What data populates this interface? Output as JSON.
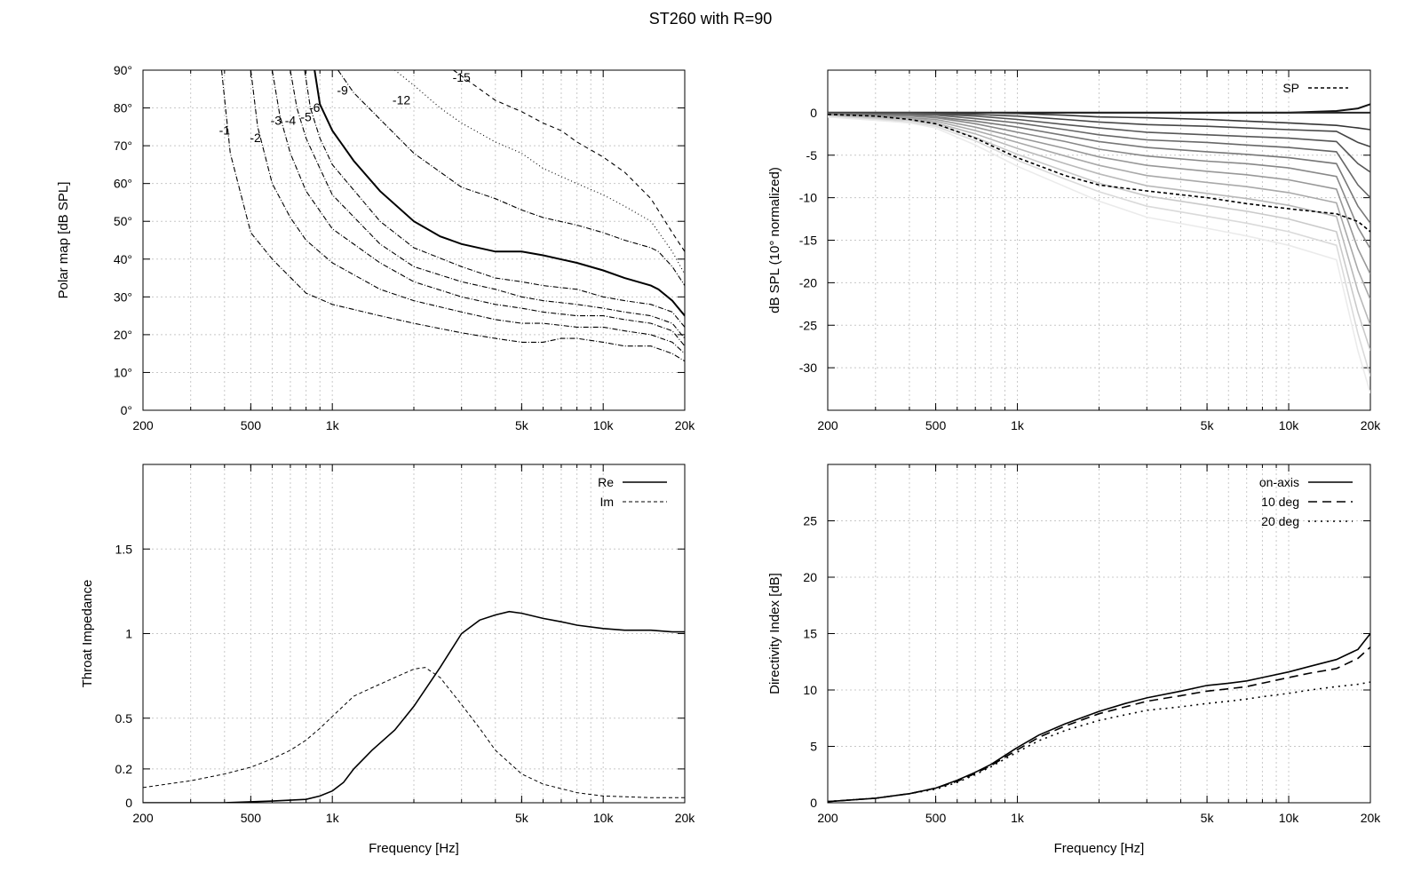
{
  "figure": {
    "title": "ST260 with R=90"
  },
  "chart_data": [
    {
      "id": "polar",
      "type": "contour",
      "ylabel": "Polar map [dB SPL]",
      "xlabel": "",
      "xscale": "log",
      "xlim": [
        200,
        20000
      ],
      "ylim": [
        0,
        90
      ],
      "x_ticks": [
        200,
        500,
        1000,
        5000,
        10000,
        20000
      ],
      "x_tick_labels": [
        "200",
        "500",
        "1k",
        "5k",
        "10k",
        "20k"
      ],
      "y_ticks": [
        0,
        10,
        20,
        30,
        40,
        50,
        60,
        70,
        80,
        90
      ],
      "y_tick_labels": [
        "0°",
        "10°",
        "20°",
        "30°",
        "40°",
        "50°",
        "60°",
        "70°",
        "80°",
        "90°"
      ],
      "grid": true,
      "series": [
        {
          "label": "-1",
          "x": [
            390,
            420,
            500,
            600,
            800,
            1000,
            1500,
            2000,
            3000,
            4000,
            5000,
            6000,
            7000,
            8000,
            10000,
            12000,
            15000,
            18000,
            20000
          ],
          "y": [
            90,
            68,
            47,
            40,
            31,
            28,
            25,
            23,
            20.5,
            19,
            18,
            18,
            19,
            19,
            18,
            17,
            17,
            15,
            13
          ]
        },
        {
          "label": "-2",
          "x": [
            500,
            530,
            600,
            700,
            800,
            1000,
            1500,
            2000,
            3000,
            4000,
            5000,
            6000,
            8000,
            10000,
            12000,
            15000,
            18000,
            20000
          ],
          "y": [
            90,
            75,
            60,
            51,
            45,
            39,
            32,
            29,
            26,
            24,
            23,
            23,
            22,
            22,
            21,
            20,
            18,
            15
          ]
        },
        {
          "label": "-3",
          "x": [
            600,
            640,
            700,
            800,
            1000,
            1500,
            2000,
            3000,
            4000,
            5000,
            6000,
            8000,
            10000,
            12000,
            15000,
            18000,
            20000
          ],
          "y": [
            90,
            78,
            68,
            58,
            48,
            39,
            34,
            30,
            28,
            27,
            26,
            25,
            25,
            24,
            23,
            21,
            17
          ]
        },
        {
          "label": "-4",
          "x": [
            700,
            740,
            800,
            900,
            1000,
            1500,
            2000,
            3000,
            4000,
            5000,
            6000,
            8000,
            10000,
            12000,
            15000,
            18000,
            20000
          ],
          "y": [
            90,
            80,
            72,
            64,
            57,
            44,
            38,
            34,
            32,
            30,
            29,
            28,
            27,
            26,
            25,
            23,
            19
          ]
        },
        {
          "label": "-5",
          "x": [
            790,
            830,
            900,
            1000,
            1500,
            2000,
            3000,
            4000,
            5000,
            6000,
            8000,
            10000,
            12000,
            15000,
            18000,
            20000
          ],
          "y": [
            90,
            80,
            72,
            65,
            50,
            43,
            38,
            35,
            34,
            33,
            32,
            30,
            29,
            28,
            26,
            22
          ]
        },
        {
          "label": "-6",
          "x": [
            860,
            900,
            1000,
            1200,
            1500,
            2000,
            2500,
            3000,
            4000,
            5000,
            6000,
            8000,
            10000,
            12000,
            15000,
            16000,
            18000,
            20000
          ],
          "y": [
            90,
            81,
            74,
            66,
            58,
            50,
            46,
            44,
            42,
            42,
            41,
            39,
            37,
            35,
            33,
            32,
            29,
            25
          ]
        },
        {
          "label": "-9",
          "x": [
            1050,
            1200,
            1500,
            2000,
            3000,
            4000,
            5000,
            6000,
            8000,
            10000,
            12000,
            15000,
            16000,
            18000,
            20000
          ],
          "y": [
            90,
            84,
            77,
            68,
            59,
            56,
            53,
            51,
            49,
            47,
            45,
            43,
            42,
            38,
            33
          ]
        },
        {
          "label": "-12",
          "x": [
            1700,
            2000,
            2500,
            3000,
            4000,
            5000,
            6000,
            8000,
            10000,
            12000,
            15000,
            18000,
            20000
          ],
          "y": [
            90,
            86,
            80,
            76,
            71,
            68,
            64,
            60,
            57,
            54,
            50,
            42,
            36
          ]
        },
        {
          "label": "-15",
          "x": [
            2800,
            3500,
            4000,
            5000,
            6000,
            7000,
            8000,
            10000,
            12000,
            15000,
            18000,
            20000
          ],
          "y": [
            90,
            85,
            82,
            79,
            76,
            74,
            71,
            67,
            63,
            56,
            47,
            42
          ]
        }
      ]
    },
    {
      "id": "spl",
      "type": "line",
      "ylabel": "dB SPL (10° normalized)",
      "xlabel": "",
      "xscale": "log",
      "xlim": [
        200,
        20000
      ],
      "ylim": [
        -35,
        5
      ],
      "x_ticks": [
        200,
        500,
        1000,
        5000,
        10000,
        20000
      ],
      "x_tick_labels": [
        "200",
        "500",
        "1k",
        "5k",
        "10k",
        "20k"
      ],
      "y_ticks": [
        0,
        -5,
        -10,
        -15,
        -20,
        -25,
        -30
      ],
      "y_tick_labels": [
        "0",
        "-5",
        "-10",
        "-15",
        "-20",
        "-25",
        "-30"
      ],
      "grid": true,
      "legend": {
        "position": "top-right"
      },
      "x": [
        200,
        300,
        400,
        500,
        700,
        1000,
        1500,
        2000,
        3000,
        5000,
        7000,
        10000,
        15000,
        18000,
        20000
      ],
      "angle_curves": [
        [
          0,
          0,
          0,
          0,
          0,
          0,
          0,
          0,
          0,
          0,
          0,
          0,
          0.2,
          0.5,
          1.0
        ],
        [
          0,
          0,
          0,
          0,
          0,
          0,
          0,
          0,
          0,
          0,
          0,
          0,
          0,
          0,
          0
        ],
        [
          0,
          0,
          0,
          0,
          0,
          -0.1,
          -0.3,
          -0.5,
          -0.6,
          -0.8,
          -1.0,
          -1.2,
          -1.5,
          -1.8,
          -2.0
        ],
        [
          0,
          0,
          0,
          -0.1,
          -0.2,
          -0.4,
          -0.8,
          -1.1,
          -1.4,
          -1.6,
          -1.8,
          -2.0,
          -2.2,
          -3.5,
          -4.0
        ],
        [
          -0.1,
          -0.1,
          -0.1,
          -0.2,
          -0.4,
          -0.8,
          -1.4,
          -1.8,
          -2.3,
          -2.6,
          -2.8,
          -3.0,
          -3.4,
          -6.0,
          -7.0
        ],
        [
          -0.1,
          -0.2,
          -0.2,
          -0.3,
          -0.7,
          -1.2,
          -2.0,
          -2.6,
          -3.2,
          -3.5,
          -3.8,
          -4.1,
          -4.6,
          -8.5,
          -10.0
        ],
        [
          -0.2,
          -0.3,
          -0.3,
          -0.5,
          -1.0,
          -1.7,
          -2.7,
          -3.4,
          -4.1,
          -4.6,
          -4.9,
          -5.3,
          -6.0,
          -11.0,
          -13.0
        ],
        [
          -0.2,
          -0.3,
          -0.4,
          -0.6,
          -1.3,
          -2.3,
          -3.4,
          -4.3,
          -5.1,
          -5.7,
          -6.0,
          -6.5,
          -7.5,
          -13.5,
          -16.0
        ],
        [
          -0.3,
          -0.4,
          -0.6,
          -0.8,
          -1.7,
          -2.9,
          -4.2,
          -5.2,
          -6.2,
          -6.9,
          -7.3,
          -7.9,
          -9.0,
          -16.0,
          -19.0
        ],
        [
          -0.3,
          -0.5,
          -0.7,
          -1.0,
          -2.1,
          -3.5,
          -5.1,
          -6.2,
          -7.4,
          -8.2,
          -8.7,
          -9.4,
          -10.6,
          -18.5,
          -22.0
        ],
        [
          -0.4,
          -0.6,
          -0.8,
          -1.2,
          -2.5,
          -4.2,
          -6.0,
          -7.2,
          -8.6,
          -9.5,
          -10.1,
          -10.9,
          -12.2,
          -21.0,
          -25.0
        ],
        [
          -0.4,
          -0.7,
          -0.9,
          -1.4,
          -2.9,
          -4.9,
          -6.9,
          -8.3,
          -9.8,
          -10.9,
          -11.6,
          -12.5,
          -14.0,
          -23.5,
          -28.0
        ],
        [
          -0.5,
          -0.8,
          -1.1,
          -1.6,
          -3.3,
          -5.6,
          -7.8,
          -9.3,
          -11.0,
          -12.2,
          -13.0,
          -14.0,
          -15.6,
          -26.0,
          -31.0
        ],
        [
          -0.5,
          -0.9,
          -1.2,
          -1.8,
          -3.8,
          -6.3,
          -8.7,
          -10.4,
          -12.3,
          -13.6,
          -14.5,
          -15.6,
          -17.3,
          -28.0,
          -33.0
        ]
      ],
      "series": [
        {
          "name": "SP",
          "values": [
            -0.2,
            -0.4,
            -0.8,
            -1.3,
            -3.0,
            -5.3,
            -7.4,
            -8.5,
            -9.2,
            -10.0,
            -10.7,
            -11.3,
            -11.9,
            -12.8,
            -14.0
          ]
        }
      ]
    },
    {
      "id": "impedance",
      "type": "line",
      "ylabel": "Throat Impedance",
      "xlabel": "Frequency [Hz]",
      "xscale": "log",
      "xlim": [
        200,
        20000
      ],
      "ylim": [
        0,
        2.0
      ],
      "x_ticks": [
        200,
        500,
        1000,
        5000,
        10000,
        20000
      ],
      "x_tick_labels": [
        "200",
        "500",
        "1k",
        "5k",
        "10k",
        "20k"
      ],
      "y_ticks": [
        0,
        0.2,
        0.5,
        1,
        1.5
      ],
      "y_tick_labels": [
        "0",
        "0.2",
        "0.5",
        "1",
        "1.5"
      ],
      "grid": true,
      "legend": {
        "position": "top-right"
      },
      "series": [
        {
          "name": "Re",
          "x": [
            200,
            400,
            600,
            800,
            900,
            1000,
            1100,
            1200,
            1400,
            1700,
            2000,
            2500,
            3000,
            3500,
            4000,
            4500,
            5000,
            6000,
            7000,
            8000,
            10000,
            12000,
            15000,
            18000,
            20000
          ],
          "y": [
            0,
            0,
            0.01,
            0.02,
            0.04,
            0.07,
            0.12,
            0.2,
            0.31,
            0.43,
            0.57,
            0.8,
            1.0,
            1.08,
            1.11,
            1.13,
            1.12,
            1.09,
            1.07,
            1.05,
            1.03,
            1.02,
            1.02,
            1.01,
            1.01
          ]
        },
        {
          "name": "Im",
          "x": [
            200,
            300,
            400,
            500,
            600,
            700,
            800,
            900,
            1000,
            1200,
            1400,
            1700,
            2000,
            2200,
            2500,
            3000,
            3500,
            4000,
            5000,
            6000,
            8000,
            10000,
            15000,
            20000
          ],
          "y": [
            0.09,
            0.13,
            0.17,
            0.21,
            0.26,
            0.31,
            0.37,
            0.44,
            0.51,
            0.63,
            0.68,
            0.74,
            0.79,
            0.8,
            0.74,
            0.58,
            0.44,
            0.31,
            0.17,
            0.11,
            0.06,
            0.04,
            0.03,
            0.03
          ]
        }
      ]
    },
    {
      "id": "directivity",
      "type": "line",
      "ylabel": "Directivity Index [dB]",
      "xlabel": "Frequency [Hz]",
      "xscale": "log",
      "xlim": [
        200,
        20000
      ],
      "ylim": [
        0,
        30
      ],
      "x_ticks": [
        200,
        500,
        1000,
        5000,
        10000,
        20000
      ],
      "x_tick_labels": [
        "200",
        "500",
        "1k",
        "5k",
        "10k",
        "20k"
      ],
      "y_ticks": [
        0,
        5,
        10,
        15,
        20,
        25
      ],
      "y_tick_labels": [
        "0",
        "5",
        "10",
        "15",
        "20",
        "25"
      ],
      "grid": true,
      "legend": {
        "position": "top-right"
      },
      "x": [
        200,
        300,
        400,
        500,
        600,
        700,
        800,
        1000,
        1200,
        1500,
        2000,
        2500,
        3000,
        4000,
        5000,
        6000,
        7000,
        8000,
        10000,
        12000,
        15000,
        18000,
        20000
      ],
      "series": [
        {
          "name": "on-axis",
          "values": [
            0.1,
            0.4,
            0.8,
            1.3,
            2.0,
            2.7,
            3.4,
            4.9,
            6.0,
            7.0,
            8.1,
            8.8,
            9.3,
            9.9,
            10.4,
            10.6,
            10.8,
            11.1,
            11.6,
            12.1,
            12.7,
            13.6,
            15.0
          ]
        },
        {
          "name": "10 deg",
          "values": [
            0.1,
            0.4,
            0.8,
            1.3,
            1.9,
            2.6,
            3.3,
            4.7,
            5.8,
            6.8,
            7.9,
            8.5,
            9.0,
            9.5,
            9.9,
            10.1,
            10.3,
            10.6,
            11.1,
            11.5,
            11.9,
            12.8,
            13.8
          ]
        },
        {
          "name": "20 deg",
          "values": [
            0.1,
            0.4,
            0.8,
            1.2,
            1.8,
            2.5,
            3.2,
            4.5,
            5.5,
            6.4,
            7.3,
            7.8,
            8.2,
            8.5,
            8.8,
            9.0,
            9.2,
            9.4,
            9.7,
            10.0,
            10.3,
            10.5,
            10.7
          ]
        }
      ]
    }
  ]
}
